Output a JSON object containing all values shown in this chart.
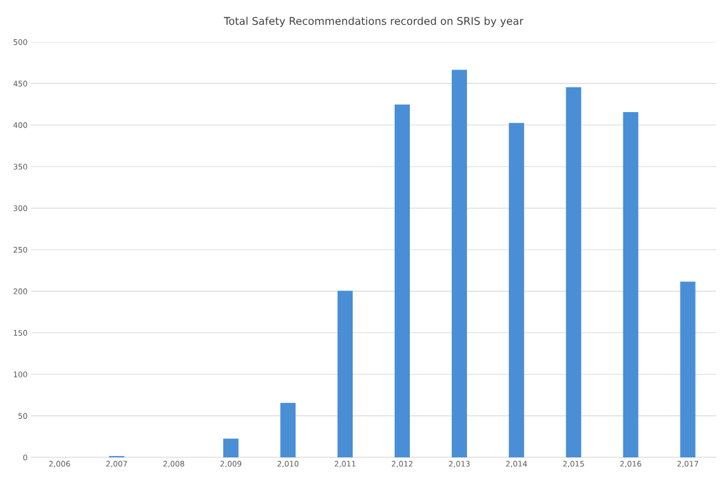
{
  "chart_data": {
    "type": "bar",
    "title": "Total Safety Recommendations recorded on SRIS by year",
    "categories": [
      "2,006",
      "2,007",
      "2,008",
      "2,009",
      "2,010",
      "2,011",
      "2,012",
      "2,013",
      "2,014",
      "2,015",
      "2,016",
      "2,017"
    ],
    "values": [
      null,
      1,
      null,
      22,
      65,
      200,
      424,
      466,
      402,
      445,
      415,
      211
    ],
    "color": "#4a8fd6",
    "ylim": [
      0,
      500
    ],
    "yticks": [
      0,
      50,
      100,
      150,
      200,
      250,
      300,
      350,
      400,
      450,
      500
    ],
    "grid": "y"
  }
}
